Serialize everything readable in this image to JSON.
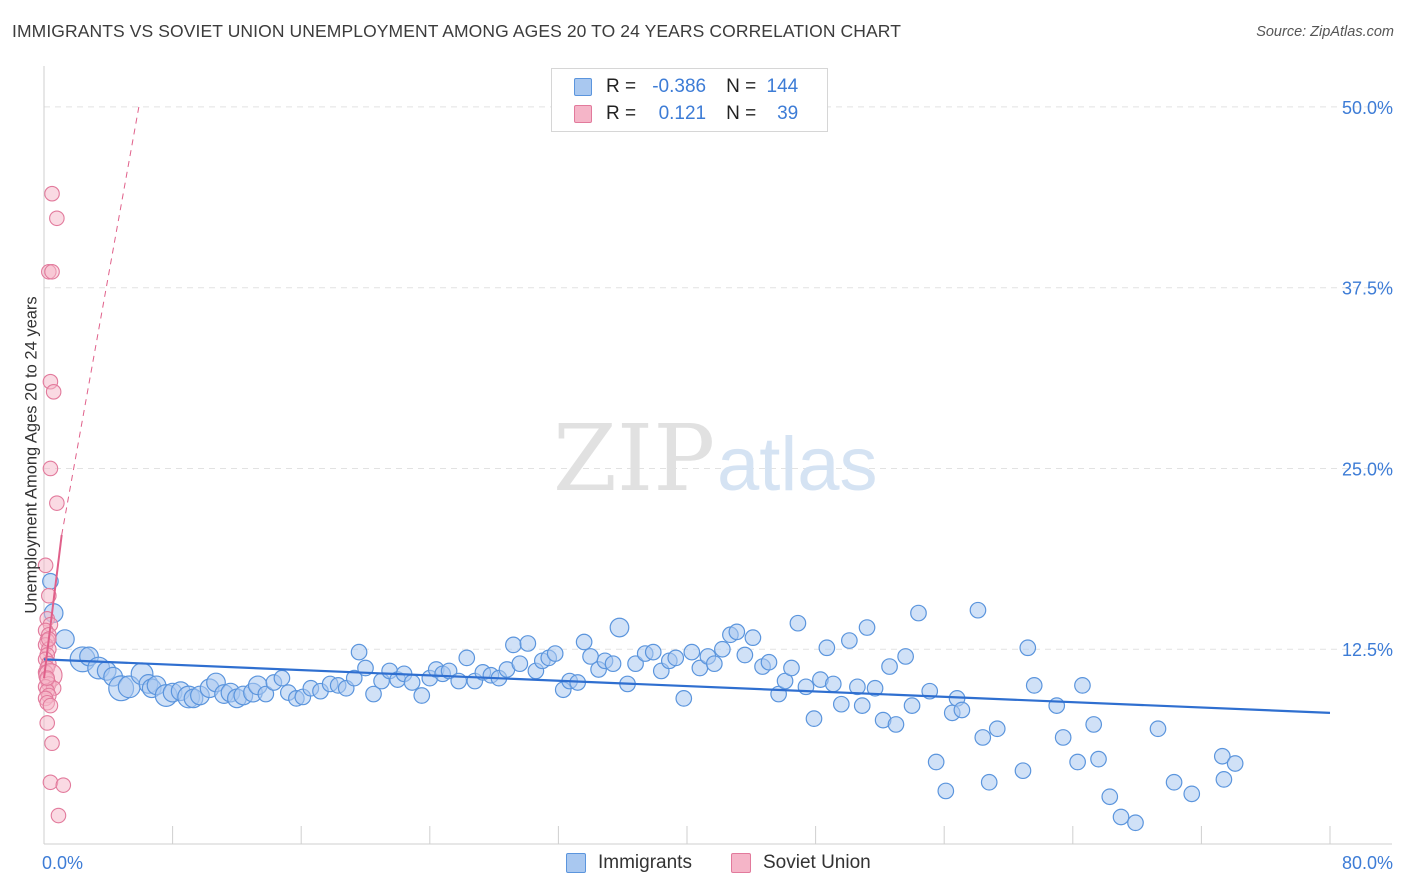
{
  "header": {
    "title": "IMMIGRANTS VS SOVIET UNION UNEMPLOYMENT AMONG AGES 20 TO 24 YEARS CORRELATION CHART",
    "source": "Source: ZipAtlas.com"
  },
  "watermark": {
    "zip": "ZIP",
    "atlas": "atlas"
  },
  "legend": {
    "rows": [
      {
        "r_label": "R =",
        "r_value": "-0.386",
        "n_label": "N =",
        "n_value": "144"
      },
      {
        "r_label": "R =",
        "r_value": "0.121",
        "n_label": "N =",
        "n_value": "39"
      }
    ]
  },
  "colors": {
    "immigrants_fill": "#a9c8f0",
    "immigrants_stroke": "#5b95dd",
    "immigrants_line": "#2f6fd0",
    "soviet_fill": "#f5b5c8",
    "soviet_stroke": "#e27a9c",
    "soviet_line": "#e0608a",
    "axis_text": "#3d7cd6",
    "grid": "#e2e2e2"
  },
  "chart_data": {
    "type": "scatter",
    "title": "IMMIGRANTS VS SOVIET UNION UNEMPLOYMENT AMONG AGES 20 TO 24 YEARS CORRELATION CHART",
    "xlabel": "",
    "ylabel": "Unemployment Among Ages 20 to 24 years",
    "xlim": [
      0,
      80
    ],
    "ylim": [
      0,
      52
    ],
    "x_tick_labels": [
      "0.0%",
      "80.0%"
    ],
    "y_ticks": [
      12.5,
      25.0,
      37.5,
      50.0
    ],
    "y_tick_labels": [
      "12.5%",
      "25.0%",
      "37.5%",
      "50.0%"
    ],
    "legend_position": "top-center",
    "series": [
      {
        "name": "Immigrants",
        "r": -0.386,
        "n": 144,
        "trend": {
          "x": [
            0,
            80
          ],
          "y": [
            11.8,
            8.1
          ]
        },
        "points": [
          [
            0.4,
            17.2,
            5
          ],
          [
            0.6,
            15.0,
            6
          ],
          [
            1.3,
            13.2,
            6
          ],
          [
            2.4,
            11.8,
            8
          ],
          [
            2.8,
            12.0,
            6
          ],
          [
            3.4,
            11.2,
            7
          ],
          [
            3.9,
            11.0,
            6
          ],
          [
            4.3,
            10.6,
            6
          ],
          [
            4.8,
            9.8,
            8
          ],
          [
            5.3,
            9.9,
            7
          ],
          [
            6.1,
            10.8,
            7
          ],
          [
            6.5,
            10.1,
            6
          ],
          [
            6.7,
            9.8,
            6
          ],
          [
            7.0,
            10.0,
            6
          ],
          [
            7.6,
            9.3,
            7
          ],
          [
            8.0,
            9.5,
            6
          ],
          [
            8.5,
            9.6,
            6
          ],
          [
            9.0,
            9.2,
            7
          ],
          [
            9.3,
            9.1,
            6
          ],
          [
            9.7,
            9.3,
            6
          ],
          [
            10.3,
            9.8,
            6
          ],
          [
            10.7,
            10.2,
            6
          ],
          [
            11.2,
            9.4,
            6
          ],
          [
            11.6,
            9.5,
            6
          ],
          [
            12.0,
            9.1,
            6
          ],
          [
            12.4,
            9.3,
            6
          ],
          [
            13.0,
            9.5,
            6
          ],
          [
            13.3,
            10.0,
            6
          ],
          [
            13.8,
            9.4,
            5
          ],
          [
            14.3,
            10.2,
            5
          ],
          [
            14.8,
            10.5,
            5
          ],
          [
            15.2,
            9.5,
            5
          ],
          [
            15.7,
            9.1,
            5
          ],
          [
            16.1,
            9.2,
            5
          ],
          [
            16.6,
            9.8,
            5
          ],
          [
            17.2,
            9.6,
            5
          ],
          [
            17.8,
            10.1,
            5
          ],
          [
            18.3,
            10.0,
            5
          ],
          [
            18.8,
            9.8,
            5
          ],
          [
            19.3,
            10.5,
            5
          ],
          [
            19.6,
            12.3,
            5
          ],
          [
            20.0,
            11.2,
            5
          ],
          [
            20.5,
            9.4,
            5
          ],
          [
            21.0,
            10.3,
            5
          ],
          [
            21.5,
            11.0,
            5
          ],
          [
            22.0,
            10.4,
            5
          ],
          [
            22.4,
            10.8,
            5
          ],
          [
            22.9,
            10.2,
            5
          ],
          [
            23.5,
            9.3,
            5
          ],
          [
            24.0,
            10.5,
            5
          ],
          [
            24.4,
            11.1,
            5
          ],
          [
            24.8,
            10.8,
            5
          ],
          [
            25.2,
            11.0,
            5
          ],
          [
            25.8,
            10.3,
            5
          ],
          [
            26.3,
            11.9,
            5
          ],
          [
            26.8,
            10.3,
            5
          ],
          [
            27.3,
            10.9,
            5
          ],
          [
            27.8,
            10.7,
            5
          ],
          [
            28.3,
            10.5,
            5
          ],
          [
            28.8,
            11.1,
            5
          ],
          [
            29.2,
            12.8,
            5
          ],
          [
            29.6,
            11.5,
            5
          ],
          [
            30.1,
            12.9,
            5
          ],
          [
            30.6,
            11.0,
            5
          ],
          [
            31.0,
            11.7,
            5
          ],
          [
            31.4,
            11.9,
            5
          ],
          [
            31.8,
            12.2,
            5
          ],
          [
            32.3,
            9.7,
            5
          ],
          [
            32.7,
            10.3,
            5
          ],
          [
            33.2,
            10.2,
            5
          ],
          [
            33.6,
            13.0,
            5
          ],
          [
            34.0,
            12.0,
            5
          ],
          [
            34.5,
            11.1,
            5
          ],
          [
            34.9,
            11.7,
            5
          ],
          [
            35.4,
            11.5,
            5
          ],
          [
            35.8,
            14.0,
            6
          ],
          [
            36.3,
            10.1,
            5
          ],
          [
            36.8,
            11.5,
            5
          ],
          [
            37.4,
            12.2,
            5
          ],
          [
            37.9,
            12.3,
            5
          ],
          [
            38.4,
            11.0,
            5
          ],
          [
            38.9,
            11.7,
            5
          ],
          [
            39.3,
            11.9,
            5
          ],
          [
            39.8,
            9.1,
            5
          ],
          [
            40.3,
            12.3,
            5
          ],
          [
            40.8,
            11.2,
            5
          ],
          [
            41.3,
            12.0,
            5
          ],
          [
            41.7,
            11.5,
            5
          ],
          [
            42.2,
            12.5,
            5
          ],
          [
            42.7,
            13.5,
            5
          ],
          [
            43.1,
            13.7,
            5
          ],
          [
            43.6,
            12.1,
            5
          ],
          [
            44.1,
            13.3,
            5
          ],
          [
            44.7,
            11.3,
            5
          ],
          [
            45.1,
            11.6,
            5
          ],
          [
            45.7,
            9.4,
            5
          ],
          [
            46.1,
            10.3,
            5
          ],
          [
            46.5,
            11.2,
            5
          ],
          [
            46.9,
            14.3,
            5
          ],
          [
            47.4,
            9.9,
            5
          ],
          [
            47.9,
            7.7,
            5
          ],
          [
            48.3,
            10.4,
            5
          ],
          [
            48.7,
            12.6,
            5
          ],
          [
            49.1,
            10.1,
            5
          ],
          [
            49.6,
            8.7,
            5
          ],
          [
            50.1,
            13.1,
            5
          ],
          [
            50.6,
            9.9,
            5
          ],
          [
            50.9,
            8.6,
            5
          ],
          [
            51.2,
            14.0,
            5
          ],
          [
            51.7,
            9.8,
            5
          ],
          [
            52.2,
            7.6,
            5
          ],
          [
            52.6,
            11.3,
            5
          ],
          [
            53.0,
            7.3,
            5
          ],
          [
            53.6,
            12.0,
            5
          ],
          [
            54.0,
            8.6,
            5
          ],
          [
            54.4,
            15.0,
            5
          ],
          [
            55.1,
            9.6,
            5
          ],
          [
            55.5,
            4.7,
            5
          ],
          [
            56.1,
            2.7,
            5
          ],
          [
            56.5,
            8.1,
            5
          ],
          [
            56.8,
            9.1,
            5
          ],
          [
            57.1,
            8.3,
            5
          ],
          [
            58.1,
            15.2,
            5
          ],
          [
            58.4,
            6.4,
            5
          ],
          [
            58.8,
            3.3,
            5
          ],
          [
            59.3,
            7.0,
            5
          ],
          [
            60.9,
            4.1,
            5
          ],
          [
            61.2,
            12.6,
            5
          ],
          [
            61.6,
            10.0,
            5
          ],
          [
            63.0,
            8.6,
            5
          ],
          [
            63.4,
            6.4,
            5
          ],
          [
            64.3,
            4.7,
            5
          ],
          [
            64.6,
            10.0,
            5
          ],
          [
            65.3,
            7.3,
            5
          ],
          [
            65.6,
            4.9,
            5
          ],
          [
            66.3,
            2.3,
            5
          ],
          [
            67.0,
            0.9,
            5
          ],
          [
            67.9,
            0.5,
            5
          ],
          [
            69.3,
            7.0,
            5
          ],
          [
            70.3,
            3.3,
            5
          ],
          [
            71.4,
            2.5,
            5
          ],
          [
            73.3,
            5.1,
            5
          ],
          [
            73.4,
            3.5,
            5
          ],
          [
            74.1,
            4.6,
            5
          ]
        ]
      },
      {
        "name": "Soviet Union",
        "r": 0.121,
        "n": 39,
        "trend": {
          "x": [
            0.0,
            1.1
          ],
          "y": [
            10.5,
            20.4
          ]
        },
        "trend_dashed": {
          "x": [
            1.1,
            5.9
          ],
          "y": [
            20.4,
            50.0
          ]
        },
        "points": [
          [
            0.5,
            44.0,
            5
          ],
          [
            0.8,
            42.3,
            5
          ],
          [
            0.3,
            38.6,
            5
          ],
          [
            0.5,
            38.6,
            5
          ],
          [
            0.4,
            31.0,
            5
          ],
          [
            0.6,
            30.3,
            5
          ],
          [
            0.4,
            25.0,
            5
          ],
          [
            0.8,
            22.6,
            5
          ],
          [
            0.1,
            18.3,
            5
          ],
          [
            0.3,
            16.2,
            5
          ],
          [
            0.2,
            14.6,
            5
          ],
          [
            0.4,
            14.2,
            5
          ],
          [
            0.1,
            13.8,
            5
          ],
          [
            0.3,
            13.5,
            5
          ],
          [
            0.2,
            13.1,
            5
          ],
          [
            0.1,
            12.8,
            5
          ],
          [
            0.3,
            12.5,
            5
          ],
          [
            0.2,
            12.1,
            5
          ],
          [
            0.1,
            11.8,
            5
          ],
          [
            0.3,
            11.5,
            5
          ],
          [
            0.2,
            11.2,
            5
          ],
          [
            0.1,
            10.9,
            5
          ],
          [
            0.4,
            10.7,
            8
          ],
          [
            0.2,
            10.4,
            5
          ],
          [
            0.3,
            10.1,
            5
          ],
          [
            0.1,
            9.9,
            5
          ],
          [
            0.6,
            9.8,
            5
          ],
          [
            0.2,
            9.6,
            5
          ],
          [
            0.3,
            9.3,
            5
          ],
          [
            0.1,
            9.1,
            5
          ],
          [
            0.2,
            8.8,
            5
          ],
          [
            0.4,
            8.6,
            5
          ],
          [
            0.2,
            7.4,
            5
          ],
          [
            0.5,
            6.0,
            5
          ],
          [
            0.4,
            3.3,
            5
          ],
          [
            1.2,
            3.1,
            5
          ],
          [
            0.9,
            1.0,
            5
          ],
          [
            0.3,
            13.2,
            5
          ],
          [
            0.2,
            10.5,
            5
          ]
        ]
      }
    ]
  },
  "bottom_legend": {
    "immigrants": "Immigrants",
    "soviet": "Soviet Union"
  }
}
